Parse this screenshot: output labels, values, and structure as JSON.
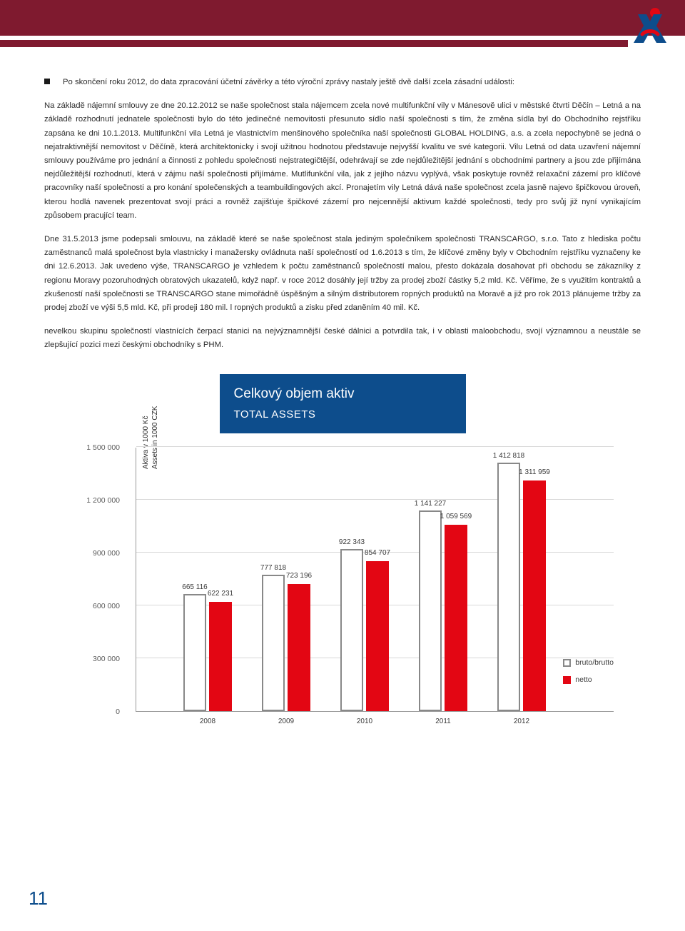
{
  "colors": {
    "header_maroon": "#7f1a2f",
    "title_blue": "#0d4d8c",
    "netto_red": "#e30613",
    "bruto_border": "#7a7a7a",
    "text": "#2b2b2b",
    "grid": "#d8d8d8"
  },
  "bullet": {
    "text": "Po skončení roku 2012, do data zpracování účetní závěrky a této výroční zprávy nastaly ještě dvě další zcela zásadní události:"
  },
  "para1": "Na základě nájemní smlouvy ze dne 20.12.2012 se naše společnost stala nájemcem zcela nové multifunkční vily v Mánesově ulici v městské čtvrti Děčín – Letná a na základě rozhodnutí jednatele společnosti bylo do této jedinečné nemovitosti přesunuto sídlo naší společnosti s tím, že změna sídla byl do Obchodního rejstříku zapsána ke dni 10.1.2013. Multifunkční vila Letná je vlastnictvím menšinového společníka naší společnosti GLOBAL HOLDING, a.s. a zcela nepochybně se jedná o nejatraktivnější nemovitost v Děčíně, která architektonicky i svojí užitnou hodnotou představuje nejvyšší kvalitu ve své kategorii. Vilu Letná od data uzavření nájemní smlouvy používáme pro jednání a činnosti z pohledu společnosti nejstrategičtější, odehrávají se zde nejdůležitější jednání s obchodními partnery a jsou zde přijímána nejdůležitější rozhodnutí, která v zájmu naší společnosti přijímáme. Mutlifunkční vila, jak z jejího názvu vyplývá, však poskytuje rovněž relaxační zázemí pro klíčové pracovníky naší společnosti a pro konání společenských a teambuildingových akcí. Pronajetím vily Letná dává naše společnost zcela jasně najevo špičkovou úroveň, kterou hodlá navenek prezentovat svojí práci a rovněž zajišťuje špičkové zázemí pro nejcennější aktivum každé společnosti, tedy pro svůj již nyní vynikajícím způsobem pracující team.",
  "para2": "Dne 31.5.2013 jsme podepsali smlouvu, na základě které se naše společnost stala jediným společníkem společnosti TRANSCARGO, s.r.o. Tato z hlediska počtu zaměstnanců malá společnost byla vlastnicky i manažersky ovládnuta naší společností od 1.6.2013 s tím, že klíčové změny byly v Obchodním rejstříku vyznačeny ke dni 12.6.2013. Jak uvedeno výše, TRANSCARGO je vzhledem k počtu zaměstnanců společností malou, přesto dokázala dosahovat při obchodu se zákazníky z regionu Moravy pozoruhodných obratových ukazatelů, když např. v roce 2012 dosáhly její tržby za prodej zboží částky 5,2 mld. Kč. Věříme, že s využitím kontraktů a zkušeností naší společnosti se TRANSCARGO stane mimořádně úspěšným a silným distributorem ropných produktů na Moravě a již pro rok 2013 plánujeme tržby za prodej zboží ve výši 5,5 mld. Kč, při prodeji 180 mil. l ropných produktů a zisku před zdaněním 40 mil. Kč.",
  "para3": "nevelkou skupinu společností vlastnících čerpací stanici na nejvýznamnější české dálnici a potvrdila tak, i v oblasti maloobchodu, svojí významnou a neustále se zlepšující pozici mezi českými obchodníky s PHM.",
  "chart": {
    "title_cs": "Celkový objem aktiv",
    "title_en": "TOTAL ASSETS",
    "y_axis_label_cs": "Aktiva v 1000 Kč",
    "y_axis_label_en": "Assets in 1000 CZK",
    "ymin": 0,
    "ymax": 1500000,
    "yticks": [
      0,
      300000,
      600000,
      900000,
      1200000,
      1500000
    ],
    "ytick_labels": [
      "0",
      "300 000",
      "600 000",
      "900 000",
      "1 200 000",
      "1 500 000"
    ],
    "categories": [
      "2008",
      "2009",
      "2010",
      "2011",
      "2012"
    ],
    "bruto_values": [
      665116,
      777818,
      922343,
      1141227,
      1412818
    ],
    "bruto_labels": [
      "665 116",
      "777 818",
      "922 343",
      "1 141 227",
      "1 412 818"
    ],
    "netto_values": [
      622231,
      723196,
      854707,
      1059569,
      1311959
    ],
    "netto_labels": [
      "622 231",
      "723 196",
      "854 707",
      "1 059 569",
      "1 311 959"
    ],
    "legend_bruto": "bruto/brutto",
    "legend_netto": "netto",
    "bruto_fill": "#ffffff",
    "bruto_border_color": "#888888",
    "netto_fill": "#e30613"
  },
  "page_number": "11"
}
